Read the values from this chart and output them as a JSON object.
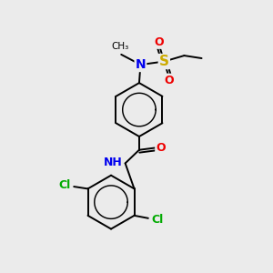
{
  "background_color": "#ebebeb",
  "atom_colors": {
    "C": "#000000",
    "N": "#0000ee",
    "O": "#ee0000",
    "S": "#ccaa00",
    "Cl": "#00aa00",
    "H": "#000000"
  },
  "bond_color": "#000000",
  "bond_width": 1.4,
  "font_size": 9,
  "fig_size": [
    3.0,
    3.0
  ],
  "dpi": 100
}
